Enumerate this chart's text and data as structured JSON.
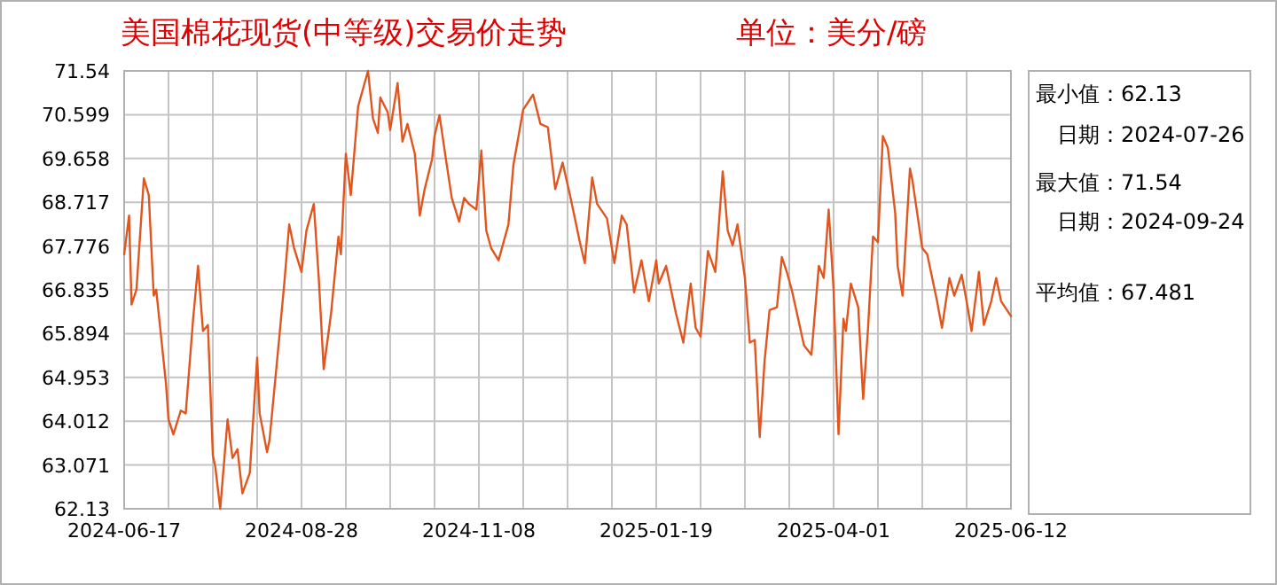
{
  "chart_data": {
    "type": "line",
    "title": "美国棉花现货(中等级)交易价走势",
    "subtitle": "单位：美分/磅",
    "annotations": [
      "最小值：62.13",
      "日期：2024-07-26",
      "最大值：71.54",
      "日期：2024-09-24",
      "平均值：67.481"
    ],
    "color": "#e0561e",
    "grid": true,
    "xlim": [
      "2024-06-17",
      "2025-06-12"
    ],
    "xticks": [
      "2024-06-17",
      {
        "value": "2024-07-05",
        "label": null
      },
      {
        "value": "2024-07-23",
        "label": null
      },
      {
        "value": "2024-08-10",
        "label": null
      },
      "2024-08-28",
      {
        "value": "2024-09-15",
        "label": null
      },
      {
        "value": "2024-10-03",
        "label": null
      },
      {
        "value": "2024-10-21",
        "label": null
      },
      "2024-11-08",
      {
        "value": "2024-11-26",
        "label": null
      },
      {
        "value": "2024-12-14",
        "label": null
      },
      {
        "value": "2025-01-01",
        "label": null
      },
      "2025-01-19",
      {
        "value": "2025-02-06",
        "label": null
      },
      {
        "value": "2025-02-24",
        "label": null
      },
      {
        "value": "2025-03-14",
        "label": null
      },
      "2025-04-01",
      {
        "value": "2025-04-19",
        "label": null
      },
      {
        "value": "2025-05-07",
        "label": null
      },
      {
        "value": "2025-05-25",
        "label": null
      },
      "2025-06-12"
    ],
    "ylim": [
      62.13,
      71.54
    ],
    "yticks": [
      62.13,
      63.071,
      64.012,
      64.953,
      65.894,
      66.835,
      67.776,
      68.717,
      69.658,
      70.599,
      71.54
    ],
    "x": [
      "2024-06-17",
      "2024-06-19",
      "2024-06-20",
      "2024-06-22",
      "2024-06-25",
      "2024-06-27",
      "2024-06-29",
      "2024-06-30",
      "2024-07-04",
      "2024-07-05",
      "2024-07-07",
      "2024-07-10",
      "2024-07-12",
      "2024-07-15",
      "2024-07-17",
      "2024-07-19",
      "2024-07-21",
      "2024-07-23",
      "2024-07-24",
      "2024-07-26",
      "2024-07-29",
      "2024-07-31",
      "2024-08-02",
      "2024-08-04",
      "2024-08-07",
      "2024-08-10",
      "2024-08-11",
      "2024-08-14",
      "2024-08-15",
      "2024-08-19",
      "2024-08-21",
      "2024-08-23",
      "2024-08-25",
      "2024-08-28",
      "2024-08-30",
      "2024-09-02",
      "2024-09-04",
      "2024-09-06",
      "2024-09-09",
      "2024-09-12",
      "2024-09-13",
      "2024-09-15",
      "2024-09-17",
      "2024-09-20",
      "2024-09-24",
      "2024-09-26",
      "2024-09-28",
      "2024-09-29",
      "2024-10-02",
      "2024-10-03",
      "2024-10-06",
      "2024-10-08",
      "2024-10-10",
      "2024-10-13",
      "2024-10-15",
      "2024-10-17",
      "2024-10-20",
      "2024-10-21",
      "2024-10-23",
      "2024-10-26",
      "2024-10-28",
      "2024-10-31",
      "2024-11-02",
      "2024-11-04",
      "2024-11-07",
      "2024-11-09",
      "2024-11-11",
      "2024-11-13",
      "2024-11-16",
      "2024-11-20",
      "2024-11-22",
      "2024-11-26",
      "2024-11-30",
      "2024-12-03",
      "2024-12-06",
      "2024-12-09",
      "2024-12-12",
      "2024-12-15",
      "2024-12-19",
      "2024-12-21",
      "2024-12-24",
      "2024-12-26",
      "2024-12-30",
      "2025-01-02",
      "2025-01-05",
      "2025-01-07",
      "2025-01-10",
      "2025-01-13",
      "2025-01-16",
      "2025-01-19",
      "2025-01-20",
      "2025-01-23",
      "2025-01-27",
      "2025-01-30",
      "2025-02-02",
      "2025-02-04",
      "2025-02-06",
      "2025-02-09",
      "2025-02-12",
      "2025-02-15",
      "2025-02-17",
      "2025-02-19",
      "2025-02-21",
      "2025-02-24",
      "2025-02-26",
      "2025-02-28",
      "2025-03-02",
      "2025-03-04",
      "2025-03-06",
      "2025-03-09",
      "2025-03-11",
      "2025-03-13",
      "2025-03-15",
      "2025-03-20",
      "2025-03-23",
      "2025-03-26",
      "2025-03-28",
      "2025-03-30",
      "2025-04-01",
      "2025-04-03",
      "2025-04-05",
      "2025-04-06",
      "2025-04-08",
      "2025-04-11",
      "2025-04-13",
      "2025-04-15",
      "2025-04-17",
      "2025-04-19",
      "2025-04-21",
      "2025-04-23",
      "2025-04-26",
      "2025-04-27",
      "2025-04-29",
      "2025-05-02",
      "2025-05-03",
      "2025-05-07",
      "2025-05-09",
      "2025-05-13",
      "2025-05-15",
      "2025-05-18",
      "2025-05-20",
      "2025-05-23",
      "2025-05-25",
      "2025-05-27",
      "2025-05-30",
      "2025-06-01",
      "2025-06-04",
      "2025-06-06",
      "2025-06-08",
      "2025-06-12"
    ],
    "values": [
      67.6,
      68.43,
      66.52,
      66.84,
      69.23,
      68.87,
      66.71,
      66.84,
      64.81,
      64.05,
      63.73,
      64.24,
      64.18,
      66.21,
      67.35,
      65.95,
      66.08,
      63.28,
      63.03,
      62.13,
      64.05,
      63.22,
      63.41,
      62.46,
      62.9,
      65.38,
      64.18,
      63.35,
      63.6,
      65.83,
      66.97,
      68.24,
      67.73,
      67.22,
      68.11,
      68.68,
      67.09,
      65.13,
      66.33,
      67.98,
      67.6,
      69.76,
      68.87,
      70.78,
      71.54,
      70.52,
      70.21,
      70.97,
      70.65,
      70.27,
      71.28,
      70.02,
      70.4,
      69.76,
      68.43,
      69.0,
      69.64,
      70.14,
      70.59,
      69.51,
      68.81,
      68.3,
      68.81,
      68.68,
      68.56,
      69.83,
      68.11,
      67.73,
      67.47,
      68.24,
      69.51,
      70.71,
      71.03,
      70.4,
      70.33,
      69.0,
      69.57,
      68.87,
      67.86,
      67.41,
      69.25,
      68.68,
      68.37,
      67.41,
      68.43,
      68.24,
      66.78,
      67.47,
      66.59,
      67.47,
      66.97,
      67.35,
      66.33,
      65.7,
      66.97,
      66.02,
      65.83,
      67.67,
      67.22,
      69.38,
      68.11,
      67.79,
      68.24,
      67.09,
      65.7,
      65.76,
      63.67,
      65.32,
      66.4,
      66.46,
      67.54,
      67.22,
      66.84,
      65.64,
      65.44,
      67.35,
      67.09,
      68.56,
      66.84,
      63.73,
      66.21,
      65.95,
      66.97,
      66.46,
      64.49,
      66.02,
      67.98,
      67.86,
      70.14,
      69.89,
      68.49,
      67.35,
      66.71,
      69.44,
      69.19,
      67.73,
      67.6,
      66.59,
      66.02,
      67.09,
      66.71,
      67.16,
      66.59,
      65.95,
      67.22,
      66.08,
      66.59,
      67.09,
      66.59,
      66.27
    ]
  }
}
